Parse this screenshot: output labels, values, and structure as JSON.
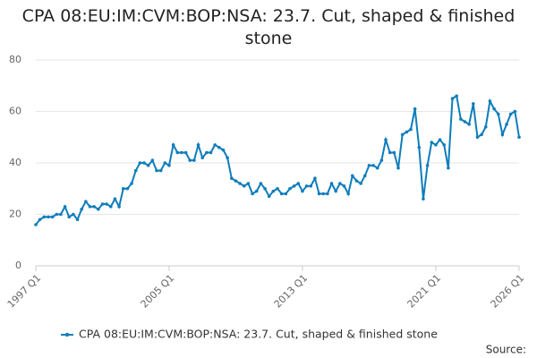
{
  "chart_data": {
    "type": "line",
    "title": "CPA 08:EU:IM:CVM:BOP:NSA: 23.7. Cut, shaped & finished stone",
    "source": "Source:",
    "categories": [
      "1997 Q1",
      null,
      null,
      null,
      null,
      null,
      null,
      null,
      null,
      null,
      null,
      null,
      null,
      null,
      null,
      null,
      null,
      null,
      null,
      null,
      null,
      null,
      null,
      null,
      null,
      null,
      null,
      null,
      null,
      null,
      null,
      null,
      "2005 Q1",
      null,
      null,
      null,
      null,
      null,
      null,
      null,
      null,
      null,
      null,
      null,
      null,
      null,
      null,
      null,
      null,
      null,
      null,
      null,
      null,
      null,
      null,
      null,
      null,
      null,
      null,
      null,
      null,
      null,
      null,
      null,
      "2013 Q1",
      null,
      null,
      null,
      null,
      null,
      null,
      null,
      null,
      null,
      null,
      null,
      null,
      null,
      null,
      null,
      null,
      null,
      null,
      null,
      null,
      null,
      null,
      null,
      null,
      null,
      null,
      null,
      null,
      null,
      null,
      null,
      "2021 Q1",
      null,
      null,
      null,
      null,
      null,
      null,
      null,
      null,
      null,
      null,
      null,
      null,
      null,
      null,
      null,
      null,
      null,
      null,
      null,
      "2026 Q1"
    ],
    "series": [
      {
        "name": "CPA 08:EU:IM:CVM:BOP:NSA: 23.7. Cut, shaped & finished stone",
        "color": "#0e7dbb",
        "values": [
          16,
          18,
          19,
          19,
          19,
          20,
          20,
          23,
          19,
          20,
          18,
          22,
          25,
          23,
          23,
          22,
          24,
          24,
          23,
          26,
          23,
          30,
          30,
          32,
          37,
          40,
          40,
          39,
          41,
          37,
          37,
          40,
          39,
          47,
          44,
          44,
          44,
          41,
          41,
          47,
          42,
          44,
          44,
          47,
          46,
          45,
          42,
          34,
          33,
          32,
          31,
          32,
          28,
          29,
          32,
          30,
          27,
          29,
          30,
          28,
          28,
          30,
          31,
          32,
          29,
          31,
          31,
          34,
          28,
          28,
          28,
          32,
          29,
          32,
          31,
          28,
          35,
          33,
          32,
          35,
          39,
          39,
          38,
          41,
          49,
          44,
          44,
          38,
          51,
          52,
          53,
          61,
          46,
          26,
          39,
          48,
          47,
          49,
          47,
          38,
          65,
          66,
          57,
          56,
          55,
          63,
          50,
          51,
          54,
          64,
          61,
          59,
          51,
          55,
          59,
          60,
          50
        ]
      }
    ],
    "ylim": [
      0,
      80
    ],
    "yticks": [
      0,
      20,
      40,
      60,
      80
    ],
    "grid": true
  }
}
